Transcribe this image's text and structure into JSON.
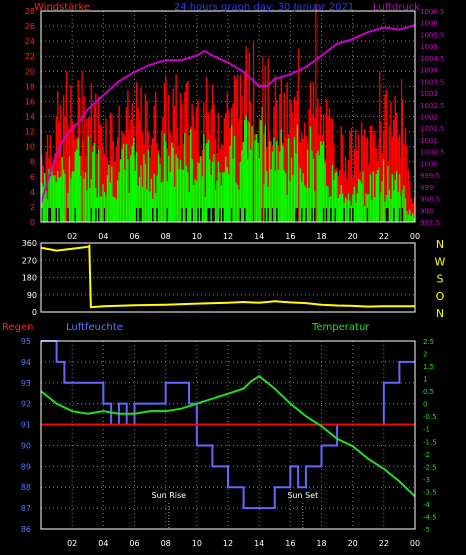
{
  "chart_data": [
    {
      "type": "bar",
      "title": "24 hours graph day: 30 Januar 2021",
      "left_axis_label": "Windstärke",
      "right_axis_label": "Luftdruck",
      "xlim": [
        0,
        24
      ],
      "x_ticks": [
        "02",
        "04",
        "06",
        "08",
        "10",
        "12",
        "14",
        "16",
        "18",
        "20",
        "22",
        "00"
      ],
      "left_ylim": [
        0,
        28
      ],
      "left_ticks": [
        "0",
        "2",
        "4",
        "6",
        "8",
        "10",
        "12",
        "14",
        "16",
        "18",
        "20",
        "22",
        "24",
        "26",
        "28"
      ],
      "right_ylim": [
        997.5,
        1006.5
      ],
      "right_ticks": [
        "997.5",
        "998",
        "998.5",
        "999",
        "999.5",
        "1000",
        "1000.5",
        "1001",
        "1001.5",
        "1002",
        "1002.5",
        "1003",
        "1003.5",
        "1004",
        "1004.5",
        "1005",
        "1005.5",
        "1006",
        "1006.5"
      ],
      "colors": {
        "gust": "#ff0000",
        "wind": "#00ff00",
        "calm": "#000000",
        "pressure": "#cc00cc",
        "axis": "#ffffff",
        "grid": "#808080",
        "left_text": "#ff2222",
        "right_text": "#cc00cc",
        "title_text": "#3333ff"
      },
      "series": [
        {
          "name": "Luftdruck",
          "kind": "line",
          "x": [
            0,
            0.5,
            1,
            1.5,
            2,
            2.5,
            3,
            4,
            5,
            6,
            7,
            8,
            9,
            10,
            10.5,
            11,
            12,
            13,
            13.5,
            14,
            14.5,
            15,
            16,
            17,
            18,
            19,
            20,
            21,
            22,
            23,
            24
          ],
          "y": [
            998.3,
            999.4,
            1000.4,
            1001.1,
            1001.5,
            1001.8,
            1002.3,
            1002.9,
            1003.5,
            1003.9,
            1004.2,
            1004.4,
            1004.4,
            1004.6,
            1004.8,
            1004.6,
            1004.3,
            1003.9,
            1003.6,
            1003.3,
            1003.3,
            1003.6,
            1003.8,
            1004.1,
            1004.6,
            1005.1,
            1005.3,
            1005.6,
            1005.8,
            1005.7,
            1005.9
          ]
        },
        {
          "name": "gust",
          "kind": "bars",
          "x": [
            0,
            1,
            2,
            3,
            4,
            5,
            6,
            7,
            8,
            9,
            10,
            11,
            12,
            13,
            14,
            15,
            16,
            17,
            18,
            19,
            20,
            21,
            22,
            23,
            23.7
          ],
          "y": [
            10,
            14,
            15,
            16,
            14,
            13,
            15,
            14,
            16,
            16,
            16,
            15,
            17,
            19,
            19,
            16,
            15,
            17,
            14,
            11,
            10,
            12,
            14,
            16,
            4
          ]
        },
        {
          "name": "wind",
          "kind": "bars",
          "x": [
            0,
            1,
            2,
            3,
            4,
            5,
            6,
            7,
            8,
            9,
            10,
            11,
            12,
            13,
            14,
            15,
            16,
            17,
            18,
            19,
            20,
            21,
            22,
            23,
            23.7
          ],
          "y": [
            6,
            9,
            9,
            10,
            8,
            8,
            10,
            8,
            10,
            10,
            10,
            9,
            11,
            13,
            15,
            11,
            10,
            11,
            9,
            6,
            5,
            6,
            7,
            7,
            1
          ]
        }
      ]
    },
    {
      "type": "line",
      "xlim": [
        0,
        24
      ],
      "ylim": [
        0,
        360
      ],
      "left_ticks": [
        "0",
        "90",
        "180",
        "270",
        "360"
      ],
      "right_ticks": [
        "N",
        "W",
        "S",
        "O",
        "N"
      ],
      "colors": {
        "line": "#ffff00",
        "right_text": "#ffff00"
      },
      "series": [
        {
          "name": "wind direction",
          "x": [
            0,
            1,
            2,
            3,
            3.1,
            3.2,
            4,
            6,
            8,
            10,
            12,
            13,
            14,
            15,
            16,
            17,
            18,
            19,
            20,
            21,
            22,
            24
          ],
          "y": [
            335,
            320,
            330,
            340,
            345,
            25,
            30,
            35,
            38,
            44,
            48,
            52,
            48,
            56,
            50,
            46,
            38,
            34,
            32,
            28,
            30,
            30
          ]
        }
      ]
    },
    {
      "type": "line",
      "left_axis_label": "Regen",
      "humidity_label": "Luftfeuchte",
      "right_axis_label": "Temperatur",
      "xlim": [
        0,
        24
      ],
      "x_ticks": [
        "02",
        "04",
        "06",
        "08",
        "10",
        "12",
        "14",
        "16",
        "18",
        "20",
        "22",
        "00"
      ],
      "left_ylim": [
        86,
        95
      ],
      "left_ticks": [
        "86",
        "87",
        "88",
        "89",
        "90",
        "91",
        "92",
        "93",
        "94",
        "95"
      ],
      "right_ylim": [
        -5,
        2.5
      ],
      "right_ticks": [
        "-5",
        "-4.5",
        "-4",
        "-3.5",
        "-3",
        "-2.5",
        "-2",
        "-1.5",
        "-1",
        "-0.5",
        "0",
        "0.5",
        "1",
        "1.5",
        "2",
        "2.5"
      ],
      "annotations": [
        {
          "text": "Sun Rise",
          "x": 8.2
        },
        {
          "text": "Sun Set",
          "x": 16.8
        }
      ],
      "colors": {
        "humidity": "#6666ff",
        "temperature": "#22dd22",
        "rain": "#ff0000",
        "left_text": "#5577ff",
        "right_text": "#22dd22",
        "regen_text": "#ff2222"
      },
      "series": [
        {
          "name": "Luftfeuchte",
          "step": true,
          "x": [
            0,
            1,
            1.5,
            4,
            4.5,
            5,
            5.5,
            6,
            7,
            7.5,
            8,
            9,
            9.5,
            10,
            11,
            12,
            13,
            13.5,
            15,
            16,
            16.5,
            17,
            18,
            19,
            20,
            21,
            22,
            23,
            24
          ],
          "y": [
            95,
            94,
            93,
            92,
            91,
            92,
            91,
            92,
            92,
            92,
            93,
            93,
            92,
            90,
            89,
            88,
            87,
            87,
            88,
            89,
            88,
            89,
            90,
            91,
            91,
            91,
            93,
            94,
            94
          ]
        },
        {
          "name": "Temperatur",
          "x": [
            0,
            1,
            2,
            3,
            4,
            5,
            6,
            7,
            8,
            9,
            10,
            11,
            12,
            13,
            13.5,
            14,
            15,
            16,
            17,
            18,
            19,
            20,
            21,
            22,
            23,
            24
          ],
          "y": [
            0.5,
            0,
            -0.3,
            -0.4,
            -0.3,
            -0.4,
            -0.4,
            -0.3,
            -0.3,
            -0.2,
            0,
            0.2,
            0.4,
            0.6,
            0.9,
            1.1,
            0.6,
            0,
            -0.5,
            -0.9,
            -1.4,
            -1.7,
            -2.2,
            -2.6,
            -3.1,
            -3.7
          ]
        },
        {
          "name": "Regen",
          "y_value": 91
        }
      ]
    }
  ]
}
